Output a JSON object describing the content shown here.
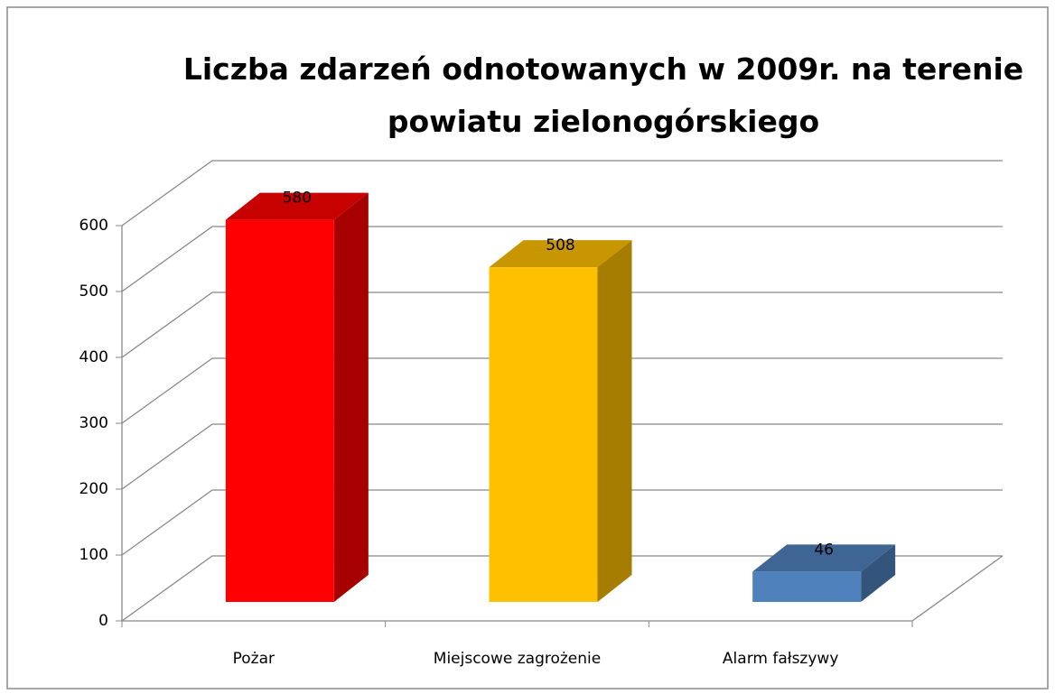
{
  "chart_data": {
    "type": "bar3d",
    "title": "Liczba zdarzeń odnotowanych w 2009r. na terenie powiatu zielonogórskiego",
    "categories": [
      "Pożar",
      "Miejscowe zagrożenie",
      "Alarm fałszywy"
    ],
    "values": [
      580,
      508,
      46
    ],
    "colors": [
      "#ff0000",
      "#ffc000",
      "#4f81bd"
    ],
    "ylim": [
      0,
      600
    ],
    "yticks": [
      0,
      100,
      200,
      300,
      400,
      500,
      600
    ],
    "grid": true
  }
}
